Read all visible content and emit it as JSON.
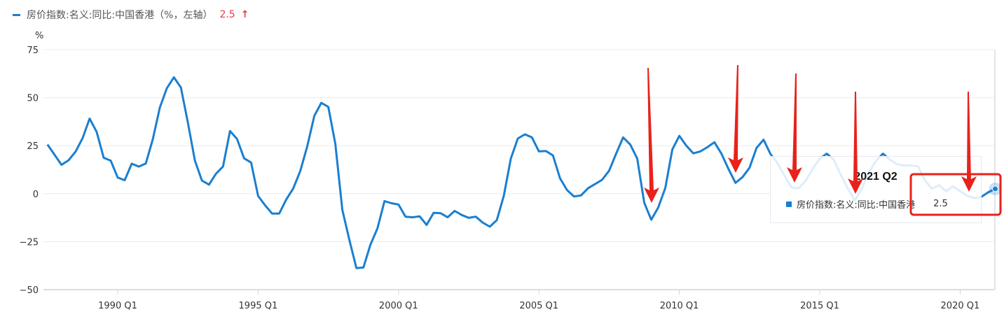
{
  "legend": {
    "series_name": "房价指数:名义:同比:中国香港（%，左轴）",
    "latest_value": "2.5",
    "trend_icon": "arrow-up-icon",
    "trend_glyph": "↑"
  },
  "tooltip": {
    "title": "2021 Q2",
    "series_name": "房价指数:名义:同比:中国香港",
    "value": "2.5"
  },
  "colors": {
    "line": "#1a7fd0",
    "annotation": "#e8221b",
    "up": "#e8383d"
  },
  "chart_data": {
    "type": "line",
    "ylabel": "%",
    "ylim": [
      -50,
      75
    ],
    "yticks": [
      "75",
      "50",
      "25",
      "0",
      "−25",
      "−50"
    ],
    "ytick_values": [
      75,
      50,
      25,
      0,
      -25,
      -50
    ],
    "xticks": [
      "1990 Q1",
      "1995 Q1",
      "2000 Q1",
      "2005 Q1",
      "2010 Q1",
      "2015 Q1",
      "2020 Q1"
    ],
    "grid": true,
    "legend": "top-left",
    "highlighted_point": "2021 Q2",
    "categories": [
      "1987 Q3",
      "1987 Q4",
      "1988 Q1",
      "1988 Q2",
      "1988 Q3",
      "1988 Q4",
      "1989 Q1",
      "1989 Q2",
      "1989 Q3",
      "1989 Q4",
      "1990 Q1",
      "1990 Q2",
      "1990 Q3",
      "1990 Q4",
      "1991 Q1",
      "1991 Q2",
      "1991 Q3",
      "1991 Q4",
      "1992 Q1",
      "1992 Q2",
      "1992 Q3",
      "1992 Q4",
      "1993 Q1",
      "1993 Q2",
      "1993 Q3",
      "1993 Q4",
      "1994 Q1",
      "1994 Q2",
      "1994 Q3",
      "1994 Q4",
      "1995 Q1",
      "1995 Q2",
      "1995 Q3",
      "1995 Q4",
      "1996 Q1",
      "1996 Q2",
      "1996 Q3",
      "1996 Q4",
      "1997 Q1",
      "1997 Q2",
      "1997 Q3",
      "1997 Q4",
      "1998 Q1",
      "1998 Q2",
      "1998 Q3",
      "1998 Q4",
      "1999 Q1",
      "1999 Q2",
      "1999 Q3",
      "1999 Q4",
      "2000 Q1",
      "2000 Q2",
      "2000 Q3",
      "2000 Q4",
      "2001 Q1",
      "2001 Q2",
      "2001 Q3",
      "2001 Q4",
      "2002 Q1",
      "2002 Q2",
      "2002 Q3",
      "2002 Q4",
      "2003 Q1",
      "2003 Q2",
      "2003 Q3",
      "2003 Q4",
      "2004 Q1",
      "2004 Q2",
      "2004 Q3",
      "2004 Q4",
      "2005 Q1",
      "2005 Q2",
      "2005 Q3",
      "2005 Q4",
      "2006 Q1",
      "2006 Q2",
      "2006 Q3",
      "2006 Q4",
      "2007 Q1",
      "2007 Q2",
      "2007 Q3",
      "2007 Q4",
      "2008 Q1",
      "2008 Q2",
      "2008 Q3",
      "2008 Q4",
      "2009 Q1",
      "2009 Q2",
      "2009 Q3",
      "2009 Q4",
      "2010 Q1",
      "2010 Q2",
      "2010 Q3",
      "2010 Q4",
      "2011 Q1",
      "2011 Q2",
      "2011 Q3",
      "2011 Q4",
      "2012 Q1",
      "2012 Q2",
      "2012 Q3",
      "2012 Q4",
      "2013 Q1",
      "2013 Q2",
      "2013 Q3",
      "2013 Q4",
      "2014 Q1",
      "2014 Q2",
      "2014 Q3",
      "2014 Q4",
      "2015 Q1",
      "2015 Q2",
      "2015 Q3",
      "2015 Q4",
      "2016 Q1",
      "2016 Q2",
      "2016 Q3",
      "2016 Q4",
      "2017 Q1",
      "2017 Q2",
      "2017 Q3",
      "2017 Q4",
      "2018 Q1",
      "2018 Q2",
      "2018 Q3",
      "2018 Q4",
      "2019 Q1",
      "2019 Q2",
      "2019 Q3",
      "2019 Q4",
      "2020 Q1",
      "2020 Q2",
      "2020 Q3",
      "2020 Q4",
      "2021 Q1",
      "2021 Q2"
    ],
    "series": [
      {
        "name": "房价指数:名义:同比:中国香港",
        "values": [
          25.6,
          20.3,
          15.0,
          17.4,
          21.9,
          28.9,
          39.1,
          32.2,
          18.7,
          17.2,
          8.4,
          7.0,
          15.6,
          14.1,
          15.7,
          28.3,
          44.8,
          54.9,
          60.6,
          55.3,
          36.9,
          17.2,
          6.8,
          4.7,
          10.4,
          14.1,
          32.6,
          28.5,
          18.4,
          16.2,
          -1.2,
          -6.1,
          -10.4,
          -10.4,
          -3.1,
          2.7,
          11.7,
          24.6,
          40.5,
          47.3,
          45.2,
          26.0,
          -8.4,
          -24.2,
          -38.8,
          -38.5,
          -26.6,
          -18.1,
          -3.9,
          -5.0,
          -5.7,
          -12.0,
          -12.3,
          -11.8,
          -16.3,
          -10.0,
          -10.2,
          -12.3,
          -9.0,
          -11.1,
          -12.6,
          -12.0,
          -15.1,
          -17.2,
          -13.8,
          -1.1,
          18.3,
          28.7,
          30.9,
          29.3,
          22.0,
          22.2,
          19.9,
          8.0,
          1.9,
          -1.5,
          -0.9,
          2.8,
          5.0,
          7.2,
          11.9,
          20.8,
          29.3,
          25.6,
          18.3,
          -4.7,
          -13.6,
          -7.2,
          3.0,
          23.0,
          30.1,
          25.0,
          21.0,
          22.0,
          24.2,
          26.8,
          20.8,
          12.9,
          5.6,
          8.6,
          13.5,
          23.8,
          28.1,
          20.5,
          15.9,
          9.2,
          3.2,
          2.8,
          6.8,
          12.9,
          18.3,
          20.8,
          17.7,
          9.8,
          2.6,
          -3.5,
          2.6,
          11.0,
          17.0,
          20.8,
          17.7,
          15.3,
          14.7,
          14.7,
          14.2,
          6.8,
          2.6,
          4.4,
          1.3,
          3.8,
          1.3,
          -1.1,
          -2.3,
          -1.7,
          0.7,
          2.5
        ]
      }
    ]
  }
}
